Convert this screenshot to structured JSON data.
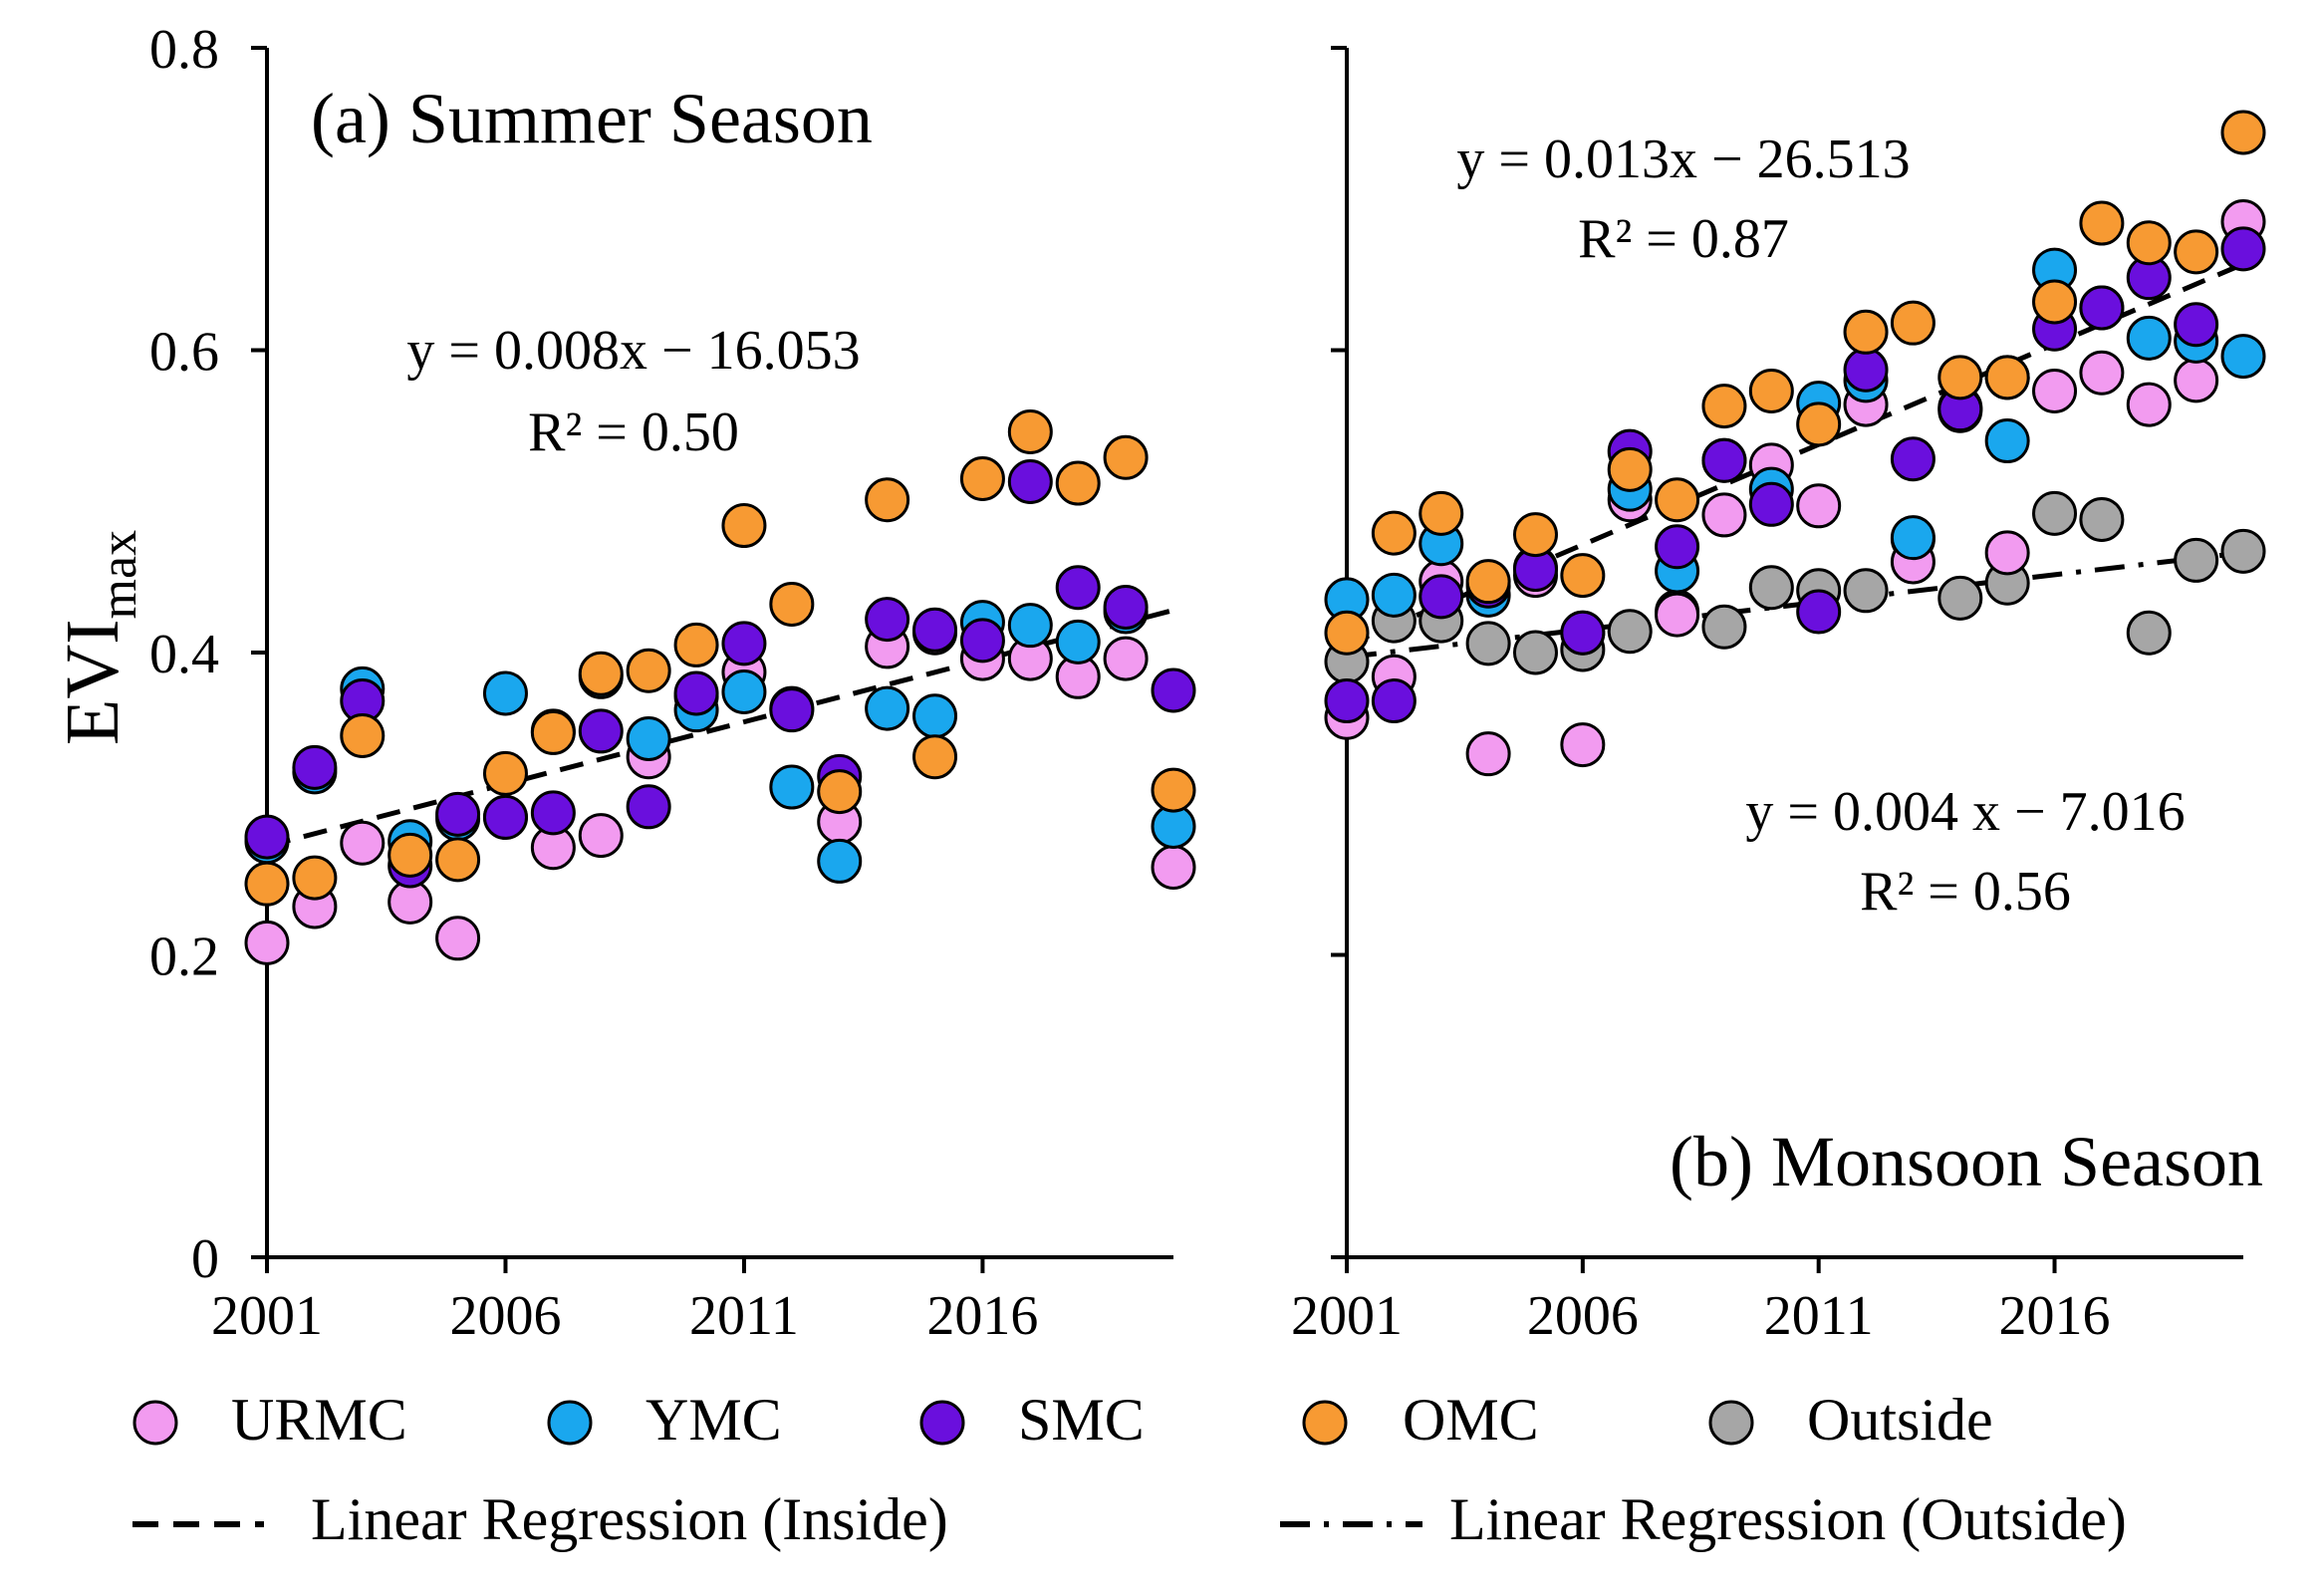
{
  "legend": {
    "items": [
      {
        "key": "URMC",
        "label": "URMC"
      },
      {
        "key": "YMC",
        "label": "YMC"
      },
      {
        "key": "SMC",
        "label": "SMC"
      },
      {
        "key": "OMC",
        "label": "OMC"
      },
      {
        "key": "Outside",
        "label": "Outside"
      }
    ],
    "line_inside": "Linear Regression (Inside)",
    "line_outside": "Linear Regression (Outside)"
  },
  "colors": {
    "URMC": "#f29bf0",
    "YMC": "#1aa7ee",
    "SMC": "#6a0fdd",
    "OMC": "#f79a33",
    "Outside": "#a6a6a6"
  },
  "chart_data": [
    {
      "type": "scatter",
      "title": "(a) Summer Season",
      "xlabel": "",
      "ylabel": "EVI",
      "ylabel_sub": "max",
      "xlim": [
        2001,
        2020
      ],
      "ylim": [
        0,
        0.8
      ],
      "xticks": [
        2001,
        2006,
        2011,
        2016
      ],
      "xtick_labels": [
        "2001",
        "2006",
        "2011",
        "2016"
      ],
      "yticks": [
        0,
        0.2,
        0.4,
        0.6,
        0.8
      ],
      "ytick_labels": [
        "0",
        "0.2",
        "0.4",
        "0.6",
        "0.8"
      ],
      "show_ytick_labels": true,
      "x": [
        2001,
        2002,
        2003,
        2004,
        2005,
        2006,
        2007,
        2008,
        2009,
        2010,
        2011,
        2012,
        2013,
        2014,
        2015,
        2016,
        2017,
        2018,
        2019,
        2020
      ],
      "series": [
        {
          "name": "URMC",
          "values": [
            0.208,
            0.232,
            0.274,
            0.235,
            0.211,
            0.291,
            0.271,
            0.279,
            0.331,
            0.371,
            0.387,
            0.363,
            0.288,
            0.404,
            0.413,
            0.396,
            0.396,
            0.384,
            0.396,
            0.258
          ]
        },
        {
          "name": "YMC",
          "values": [
            0.275,
            0.321,
            0.376,
            0.275,
            0.29,
            0.373,
            0.348,
            0.384,
            0.343,
            0.362,
            0.374,
            0.311,
            0.262,
            0.363,
            0.358,
            0.42,
            0.418,
            0.407,
            0.427,
            0.285
          ]
        },
        {
          "name": "SMC",
          "values": [
            0.278,
            0.324,
            0.368,
            0.259,
            0.293,
            0.291,
            0.294,
            0.348,
            0.298,
            0.373,
            0.406,
            0.362,
            0.318,
            0.422,
            0.415,
            0.408,
            0.513,
            0.443,
            0.43,
            0.375
          ]
        },
        {
          "name": "OMC",
          "values": [
            0.247,
            0.251,
            0.345,
            0.266,
            0.263,
            0.32,
            0.347,
            0.386,
            0.388,
            0.405,
            0.484,
            0.432,
            0.308,
            0.501,
            0.331,
            0.515,
            0.546,
            0.512,
            0.529,
            0.309
          ]
        }
      ],
      "regressions": [
        {
          "name": "Linear Regression (Inside)",
          "style": "dashed",
          "x_range": [
            2001,
            2020
          ],
          "y_range": [
            0.272,
            0.428
          ],
          "equation": "y = 0.008x − 16.053",
          "r2": "R² = 0.50"
        }
      ]
    },
    {
      "type": "scatter",
      "title": "(b) Monsoon Season",
      "xlabel": "",
      "ylabel": "",
      "xlim": [
        2001,
        2020
      ],
      "ylim": [
        0,
        0.8
      ],
      "xticks": [
        2001,
        2006,
        2011,
        2016
      ],
      "xtick_labels": [
        "2001",
        "2006",
        "2011",
        "2016"
      ],
      "yticks": [
        0,
        0.2,
        0.4,
        0.6,
        0.8
      ],
      "show_ytick_labels": false,
      "x": [
        2001,
        2002,
        2003,
        2004,
        2005,
        2006,
        2007,
        2008,
        2009,
        2010,
        2011,
        2012,
        2013,
        2014,
        2015,
        2016,
        2017,
        2018,
        2019,
        2020
      ],
      "series": [
        {
          "name": "URMC",
          "values": [
            0.357,
            0.384,
            0.447,
            0.333,
            0.451,
            0.339,
            0.501,
            0.425,
            0.491,
            0.524,
            0.497,
            0.564,
            0.46,
            0.562,
            0.466,
            0.573,
            0.585,
            0.564,
            0.58,
            0.685
          ]
        },
        {
          "name": "YMC",
          "values": [
            0.435,
            0.438,
            0.472,
            0.438,
            0.456,
            0.413,
            0.508,
            0.454,
            0.527,
            0.508,
            0.565,
            0.58,
            0.476,
            0.56,
            0.54,
            0.653,
            0.628,
            0.608,
            0.606,
            0.596
          ]
        },
        {
          "name": "SMC",
          "values": [
            0.368,
            0.368,
            0.437,
            0.444,
            0.455,
            0.413,
            0.533,
            0.47,
            0.527,
            0.498,
            0.427,
            0.587,
            0.528,
            0.561,
            0.582,
            0.614,
            0.628,
            0.648,
            0.617,
            0.667
          ]
        },
        {
          "name": "OMC",
          "values": [
            0.413,
            0.479,
            0.492,
            0.447,
            0.478,
            0.451,
            0.521,
            0.501,
            0.563,
            0.573,
            0.551,
            0.612,
            0.618,
            0.582,
            0.582,
            0.632,
            0.684,
            0.671,
            0.665,
            0.744
          ]
        },
        {
          "name": "Outside",
          "values": [
            0.394,
            0.421,
            0.421,
            0.406,
            0.4,
            0.402,
            0.414,
            0.427,
            0.417,
            0.443,
            0.441,
            0.441,
            0.475,
            0.436,
            0.446,
            0.492,
            0.488,
            0.413,
            0.461,
            0.467
          ]
        }
      ],
      "regressions": [
        {
          "name": "Linear Regression (Inside)",
          "style": "dashed",
          "x_range": [
            2001,
            2020
          ],
          "y_range": [
            0.405,
            0.657
          ],
          "equation": "y = 0.013x − 26.513",
          "r2": "R² = 0.87"
        },
        {
          "name": "Linear Regression (Outside)",
          "style": "dashdot",
          "x_range": [
            2001,
            2020
          ],
          "y_range": [
            0.397,
            0.466
          ],
          "equation": "y = 0.004 x − 7.016",
          "r2": "R² = 0.56"
        }
      ]
    }
  ]
}
